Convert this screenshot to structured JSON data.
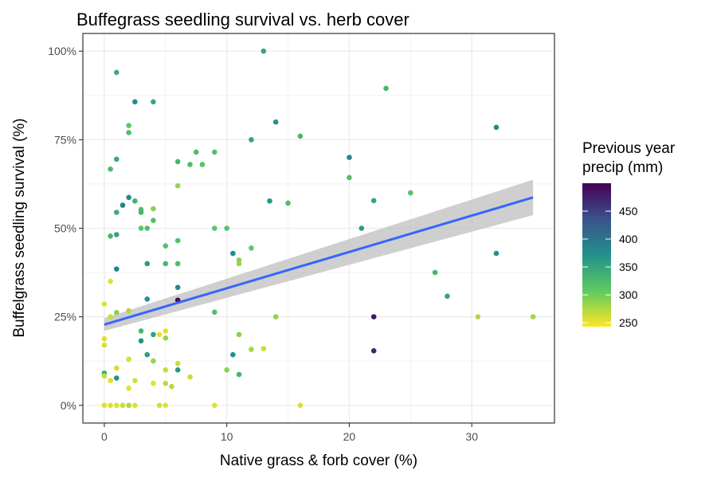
{
  "chart_data": {
    "type": "scatter",
    "title": "Buffegrass seedling survival vs. herb cover",
    "xlabel": "Native grass & forb cover (%)",
    "ylabel": "Buffelgrass seedling survival (%)",
    "xlim": [
      -1.75,
      36.75
    ],
    "ylim": [
      -0.05,
      1.05
    ],
    "x_ticks": [
      0,
      10,
      20,
      30
    ],
    "x_tick_labels": [
      "0",
      "10",
      "20",
      "30"
    ],
    "y_ticks": [
      0,
      0.25,
      0.5,
      0.75,
      1
    ],
    "y_tick_labels": [
      "0%",
      "25%",
      "50%",
      "75%",
      "100%"
    ],
    "grid": true,
    "legend": {
      "position": "right",
      "title_lines": [
        "Previous year",
        "precip (mm)"
      ],
      "type": "colorbar",
      "colormap": "viridis (reversed: low = yellow, high = purple)",
      "min": 243,
      "max": 500,
      "ticks": [
        250,
        300,
        350,
        400,
        450
      ],
      "tick_labels": [
        "250",
        "300",
        "350",
        "400",
        "450"
      ]
    },
    "trend": {
      "type": "linear fit with confidence band",
      "color": "#3366FF",
      "band_color": "#bfbfbf",
      "x": [
        0,
        35
      ],
      "y": [
        0.228,
        0.587
      ],
      "band_halfwidth": [
        0.018,
        0.05
      ]
    },
    "points": [
      {
        "x": 1,
        "y": 0.94,
        "precip": 340
      },
      {
        "x": 2.5,
        "y": 0.857,
        "precip": 375
      },
      {
        "x": 4,
        "y": 0.857,
        "precip": 345
      },
      {
        "x": 13,
        "y": 1.0,
        "precip": 350
      },
      {
        "x": 23,
        "y": 0.895,
        "precip": 330
      },
      {
        "x": 2,
        "y": 0.79,
        "precip": 310
      },
      {
        "x": 2,
        "y": 0.77,
        "precip": 320
      },
      {
        "x": 14,
        "y": 0.8,
        "precip": 370
      },
      {
        "x": 16,
        "y": 0.76,
        "precip": 330
      },
      {
        "x": 12,
        "y": 0.75,
        "precip": 350
      },
      {
        "x": 32,
        "y": 0.785,
        "precip": 380
      },
      {
        "x": 1,
        "y": 0.695,
        "precip": 345
      },
      {
        "x": 0.5,
        "y": 0.667,
        "precip": 325
      },
      {
        "x": 6,
        "y": 0.688,
        "precip": 330
      },
      {
        "x": 7,
        "y": 0.68,
        "precip": 320
      },
      {
        "x": 7.5,
        "y": 0.715,
        "precip": 325
      },
      {
        "x": 8,
        "y": 0.68,
        "precip": 315
      },
      {
        "x": 9,
        "y": 0.715,
        "precip": 320
      },
      {
        "x": 20,
        "y": 0.7,
        "precip": 380
      },
      {
        "x": 20,
        "y": 0.643,
        "precip": 320
      },
      {
        "x": 25,
        "y": 0.6,
        "precip": 315
      },
      {
        "x": 6,
        "y": 0.62,
        "precip": 285
      },
      {
        "x": 2,
        "y": 0.587,
        "precip": 380
      },
      {
        "x": 2.5,
        "y": 0.577,
        "precip": 335
      },
      {
        "x": 1.5,
        "y": 0.565,
        "precip": 385
      },
      {
        "x": 1,
        "y": 0.545,
        "precip": 340
      },
      {
        "x": 3,
        "y": 0.553,
        "precip": 320
      },
      {
        "x": 3,
        "y": 0.545,
        "precip": 330
      },
      {
        "x": 4,
        "y": 0.555,
        "precip": 290
      },
      {
        "x": 4,
        "y": 0.522,
        "precip": 320
      },
      {
        "x": 13.5,
        "y": 0.577,
        "precip": 365
      },
      {
        "x": 15,
        "y": 0.571,
        "precip": 320
      },
      {
        "x": 22,
        "y": 0.578,
        "precip": 350
      },
      {
        "x": 3,
        "y": 0.5,
        "precip": 310
      },
      {
        "x": 3.5,
        "y": 0.5,
        "precip": 320
      },
      {
        "x": 9,
        "y": 0.5,
        "precip": 310
      },
      {
        "x": 10,
        "y": 0.5,
        "precip": 315
      },
      {
        "x": 21,
        "y": 0.5,
        "precip": 360
      },
      {
        "x": 0.5,
        "y": 0.478,
        "precip": 330
      },
      {
        "x": 1,
        "y": 0.482,
        "precip": 350
      },
      {
        "x": 5,
        "y": 0.45,
        "precip": 315
      },
      {
        "x": 6,
        "y": 0.465,
        "precip": 320
      },
      {
        "x": 12,
        "y": 0.444,
        "precip": 310
      },
      {
        "x": 10.5,
        "y": 0.429,
        "precip": 380
      },
      {
        "x": 32,
        "y": 0.429,
        "precip": 370
      },
      {
        "x": 11,
        "y": 0.41,
        "precip": 290
      },
      {
        "x": 11,
        "y": 0.4,
        "precip": 285
      },
      {
        "x": 3.5,
        "y": 0.4,
        "precip": 360
      },
      {
        "x": 5,
        "y": 0.4,
        "precip": 330
      },
      {
        "x": 6,
        "y": 0.4,
        "precip": 325
      },
      {
        "x": 1,
        "y": 0.385,
        "precip": 385
      },
      {
        "x": 27,
        "y": 0.375,
        "precip": 330
      },
      {
        "x": 0.5,
        "y": 0.35,
        "precip": 255
      },
      {
        "x": 6,
        "y": 0.333,
        "precip": 380
      },
      {
        "x": 28,
        "y": 0.308,
        "precip": 350
      },
      {
        "x": 3.5,
        "y": 0.3,
        "precip": 370
      },
      {
        "x": 6,
        "y": 0.297,
        "precip": 490
      },
      {
        "x": 0,
        "y": 0.286,
        "precip": 255
      },
      {
        "x": 2,
        "y": 0.267,
        "precip": 275
      },
      {
        "x": 1,
        "y": 0.262,
        "precip": 290
      },
      {
        "x": 9,
        "y": 0.263,
        "precip": 320
      },
      {
        "x": 0.5,
        "y": 0.25,
        "precip": 265
      },
      {
        "x": 14,
        "y": 0.25,
        "precip": 285
      },
      {
        "x": 22,
        "y": 0.25,
        "precip": 480
      },
      {
        "x": 30.5,
        "y": 0.25,
        "precip": 275
      },
      {
        "x": 35,
        "y": 0.25,
        "precip": 280
      },
      {
        "x": 3,
        "y": 0.21,
        "precip": 330
      },
      {
        "x": 5,
        "y": 0.21,
        "precip": 255
      },
      {
        "x": 3,
        "y": 0.182,
        "precip": 370
      },
      {
        "x": 4,
        "y": 0.2,
        "precip": 355
      },
      {
        "x": 4.5,
        "y": 0.2,
        "precip": 255
      },
      {
        "x": 5,
        "y": 0.19,
        "precip": 285
      },
      {
        "x": 11,
        "y": 0.2,
        "precip": 290
      },
      {
        "x": 0,
        "y": 0.188,
        "precip": 255
      },
      {
        "x": 0,
        "y": 0.17,
        "precip": 260
      },
      {
        "x": 3.5,
        "y": 0.143,
        "precip": 360
      },
      {
        "x": 10.5,
        "y": 0.143,
        "precip": 375
      },
      {
        "x": 12,
        "y": 0.158,
        "precip": 280
      },
      {
        "x": 13,
        "y": 0.16,
        "precip": 265
      },
      {
        "x": 22,
        "y": 0.154,
        "precip": 470
      },
      {
        "x": 4,
        "y": 0.125,
        "precip": 285
      },
      {
        "x": 2,
        "y": 0.13,
        "precip": 260
      },
      {
        "x": 6,
        "y": 0.118,
        "precip": 265
      },
      {
        "x": 0,
        "y": 0.091,
        "precip": 340
      },
      {
        "x": 1,
        "y": 0.105,
        "precip": 260
      },
      {
        "x": 5,
        "y": 0.1,
        "precip": 265
      },
      {
        "x": 6,
        "y": 0.1,
        "precip": 365
      },
      {
        "x": 10,
        "y": 0.1,
        "precip": 290
      },
      {
        "x": 11,
        "y": 0.087,
        "precip": 330
      },
      {
        "x": 0,
        "y": 0.083,
        "precip": 265
      },
      {
        "x": 7,
        "y": 0.08,
        "precip": 265
      },
      {
        "x": 1,
        "y": 0.077,
        "precip": 370
      },
      {
        "x": 0.5,
        "y": 0.07,
        "precip": 255
      },
      {
        "x": 2.5,
        "y": 0.07,
        "precip": 260
      },
      {
        "x": 4,
        "y": 0.062,
        "precip": 255
      },
      {
        "x": 5,
        "y": 0.062,
        "precip": 270
      },
      {
        "x": 5.5,
        "y": 0.053,
        "precip": 270
      },
      {
        "x": 2,
        "y": 0.048,
        "precip": 255
      },
      {
        "x": 0,
        "y": 0,
        "precip": 255
      },
      {
        "x": 0.5,
        "y": 0,
        "precip": 255
      },
      {
        "x": 1,
        "y": 0,
        "precip": 255
      },
      {
        "x": 1.5,
        "y": 0,
        "precip": 265
      },
      {
        "x": 2,
        "y": 0,
        "precip": 275
      },
      {
        "x": 2.5,
        "y": 0,
        "precip": 255
      },
      {
        "x": 4.5,
        "y": 0,
        "precip": 260
      },
      {
        "x": 5,
        "y": 0,
        "precip": 255
      },
      {
        "x": 9,
        "y": 0,
        "precip": 255
      },
      {
        "x": 16,
        "y": 0,
        "precip": 255
      }
    ]
  }
}
